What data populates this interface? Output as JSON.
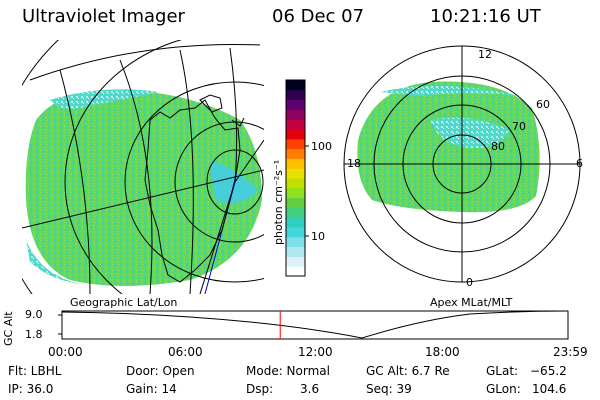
{
  "header": {
    "instrument": "Ultraviolet Imager",
    "date": "06 Dec 07",
    "time": "10:21:16 UT"
  },
  "geo_panel": {
    "label": "Geographic Lat/Lon"
  },
  "polar_panel": {
    "label": "Apex MLat/MLT",
    "mlt_labels": [
      "12",
      "18",
      "6",
      "0"
    ],
    "mlat_labels": [
      "60",
      "70",
      "80"
    ]
  },
  "colorbar": {
    "unit_label": "photon cm⁻²s⁻¹",
    "tick_labels": [
      "100",
      "10"
    ],
    "scale": "log",
    "colors": [
      "#ffffff",
      "#e0f0f8",
      "#b0e8f0",
      "#80e0e8",
      "#40d8d8",
      "#30d0c0",
      "#40d080",
      "#60d040",
      "#90e020",
      "#c0e000",
      "#e8e000",
      "#ffc000",
      "#ff8000",
      "#ff4000",
      "#e00010",
      "#c00040",
      "#900060",
      "#600070",
      "#300050",
      "#000020"
    ]
  },
  "alt_strip": {
    "axis_label": "GC Alt",
    "y_ticks": [
      "9.0",
      "1.8"
    ],
    "time_ticks": [
      "00:00",
      "06:00",
      "12:00",
      "18:00",
      "23:59"
    ],
    "current_time_hours": 10.35,
    "marker_color": "#ff0000"
  },
  "info": {
    "flt": "Flt: LBHL",
    "ip": "IP: 36.0",
    "door": "Door: Open",
    "gain": "Gain: 14",
    "mode": "Mode: Normal",
    "dsp_label": "Dsp:",
    "dsp_value": "3.6",
    "gcalt": "GC Alt: 6.7 Re",
    "seq": "Seq: 39",
    "glat_label": "GLat:",
    "glat_value": "−65.2",
    "glon_label": "GLon:",
    "glon_value": "104.6"
  }
}
